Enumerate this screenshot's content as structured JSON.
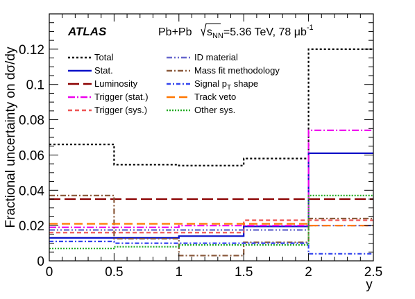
{
  "chart_data": {
    "type": "line",
    "xlabel": "y",
    "ylabel": "Fractional uncertainty on dσ/dy",
    "xlim": [
      0,
      2.5
    ],
    "ylim": [
      0,
      0.14
    ],
    "x_ticks": [
      "0",
      "0.5",
      "1",
      "1.5",
      "2",
      "2.5"
    ],
    "y_ticks": [
      "0",
      "0.02",
      "0.04",
      "0.06",
      "0.08",
      "0.1",
      "0.12"
    ],
    "bin_edges": [
      0,
      0.5,
      1.0,
      1.5,
      2.0,
      2.5
    ],
    "experiment": "ATLAS",
    "collision": "Pb+Pb",
    "energy_label": "s",
    "energy_sub": "NN",
    "energy_value": "=5.36 TeV, 78 μb",
    "lumi_sup": "-1",
    "series": [
      {
        "name": "Total",
        "color": "#000000",
        "style": "dotted",
        "values": [
          0.066,
          0.0545,
          0.054,
          0.058,
          0.12
        ]
      },
      {
        "name": "Stat.",
        "color": "#0a10c8",
        "style": "solid",
        "values": [
          0.013,
          0.013,
          0.014,
          0.0195,
          0.061
        ]
      },
      {
        "name": "Luminosity",
        "color": "#8b0000",
        "style": "longdash",
        "values": [
          0.035,
          0.035,
          0.035,
          0.035,
          0.035
        ]
      },
      {
        "name": "Trigger (stat.)",
        "color": "#ee00ee",
        "style": "dashdot",
        "values": [
          0.019,
          0.019,
          0.02,
          0.02,
          0.074
        ]
      },
      {
        "name": "Trigger (sys.)",
        "color": "#ee5555",
        "style": "dashed",
        "values": [
          0.016,
          0.016,
          0.016,
          0.023,
          0.023
        ]
      },
      {
        "name": "ID material",
        "color": "#6666cc",
        "style": "dashdotdot",
        "values": [
          0.0175,
          0.0175,
          0.0175,
          0.0175,
          0.02
        ]
      },
      {
        "name": "Mass fit methodology",
        "color": "#8b5a3c",
        "style": "dashdot2",
        "values": [
          0.037,
          0.0125,
          0.003,
          0.0105,
          0.024
        ]
      },
      {
        "name": "Signal p",
        "name_sub": "T",
        "name_suffix": " shape",
        "color": "#3344ee",
        "style": "dashdot3",
        "values": [
          0.011,
          0.01,
          0.01,
          0.01,
          0.004
        ]
      },
      {
        "name": "Track veto",
        "color": "#ff7700",
        "style": "longdash2",
        "values": [
          0.021,
          0.021,
          0.021,
          0.021,
          0.02
        ]
      },
      {
        "name": "Other sys.",
        "color": "#22aa22",
        "style": "dotted2",
        "values": [
          0.007,
          0.008,
          0.009,
          0.009,
          0.037
        ]
      }
    ],
    "legend_position": "top-left"
  }
}
